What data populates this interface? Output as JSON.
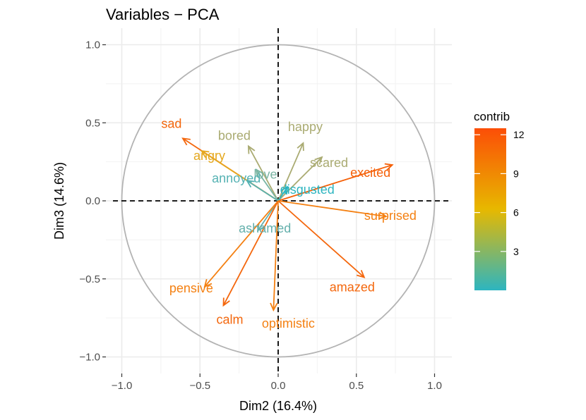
{
  "chart_data": {
    "type": "scatter",
    "title": "Variables − PCA",
    "xlabel": "Dim2 (16.4%)",
    "ylabel": "Dim3 (14.6%)",
    "xlim": [
      -1.1,
      1.1
    ],
    "ylim": [
      -1.05,
      1.1
    ],
    "xticks": [
      -1.0,
      -0.5,
      0.0,
      0.5,
      1.0
    ],
    "xtick_labels": [
      "−1.0",
      "−0.5",
      "0.0",
      "0.5",
      "1.0"
    ],
    "yticks": [
      -1.0,
      -0.5,
      0.0,
      0.5,
      1.0
    ],
    "ytick_labels": [
      "−1.0",
      "−0.5",
      "0.0",
      "0.5",
      "1.0"
    ],
    "grid": true,
    "unit_circle": true,
    "legend": {
      "title": "contrib",
      "placement": "right",
      "range": [
        0,
        12.5
      ],
      "ticks": [
        3,
        6,
        9,
        12
      ],
      "tick_labels": [
        "3",
        "6",
        "9",
        "12"
      ],
      "colors": [
        "#2db5c0",
        "#e7b800",
        "#fc4e07"
      ]
    },
    "series": [
      {
        "label": "sad",
        "x": -0.61,
        "y": 0.4,
        "contrib": 11.5,
        "color": "#f4670d"
      },
      {
        "label": "bored",
        "x": -0.19,
        "y": 0.35,
        "contrib": 3.5,
        "color": "#aaab72"
      },
      {
        "label": "happy",
        "x": 0.16,
        "y": 0.37,
        "contrib": 3.5,
        "color": "#aaab72"
      },
      {
        "label": "angry",
        "x": -0.49,
        "y": 0.32,
        "contrib": 7.5,
        "color": "#e5a81e"
      },
      {
        "label": "love",
        "x": -0.14,
        "y": 0.2,
        "contrib": 2.0,
        "color": "#7ab5a3"
      },
      {
        "label": "scared",
        "x": 0.28,
        "y": 0.28,
        "contrib": 3.5,
        "color": "#aaab72"
      },
      {
        "label": "excited",
        "x": 0.73,
        "y": 0.23,
        "contrib": 12.0,
        "color": "#f56008"
      },
      {
        "label": "annoyed",
        "x": -0.2,
        "y": 0.13,
        "contrib": 1.0,
        "color": "#55b2b3"
      },
      {
        "label": "disgusted",
        "x": 0.06,
        "y": 0.09,
        "contrib": 0.5,
        "color": "#2db5c0"
      },
      {
        "label": "surprised",
        "x": 0.69,
        "y": -0.1,
        "contrib": 10.0,
        "color": "#f48012"
      },
      {
        "label": "ashamed",
        "x": -0.13,
        "y": -0.19,
        "contrib": 1.5,
        "color": "#64b0ac"
      },
      {
        "label": "pensive",
        "x": -0.47,
        "y": -0.55,
        "contrib": 10.0,
        "color": "#f48012"
      },
      {
        "label": "amazed",
        "x": 0.55,
        "y": -0.49,
        "contrib": 11.5,
        "color": "#f4670d"
      },
      {
        "label": "calm",
        "x": -0.35,
        "y": -0.67,
        "contrib": 11.5,
        "color": "#f4670d"
      },
      {
        "label": "optimistic",
        "x": -0.03,
        "y": -0.7,
        "contrib": 10.0,
        "color": "#f48012"
      }
    ]
  }
}
